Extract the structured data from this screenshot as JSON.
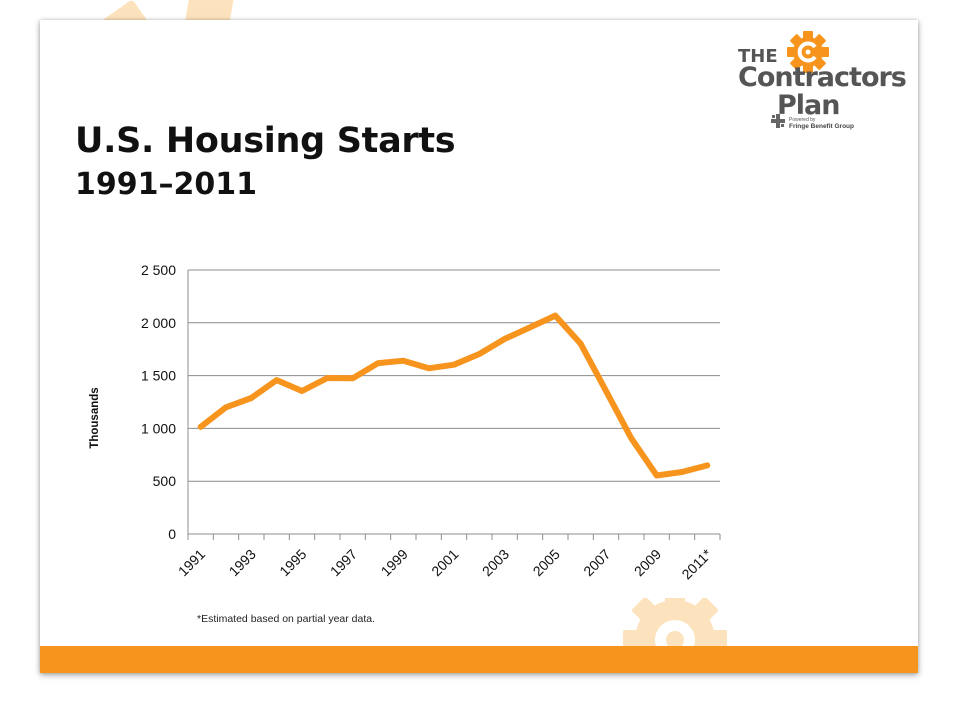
{
  "slide": {
    "title": "U.S. Housing Starts",
    "subtitle": "1991–2011",
    "footnote": "*Estimated based on partial year data."
  },
  "logo": {
    "the": "THE",
    "contractors": "Contractors",
    "plan": "Plan",
    "powered_by": "Powered by",
    "company": "Fringe Benefit Group"
  },
  "colors": {
    "accent": "#f7941d",
    "gear_light": "#fde3bd",
    "text": "#111111",
    "grid": "#999999"
  },
  "chart_data": {
    "type": "line",
    "title": "",
    "xlabel": "",
    "ylabel": "Thousands",
    "ylim": [
      0,
      2500
    ],
    "yticks": [
      0,
      500,
      1000,
      1500,
      2000,
      2500
    ],
    "ytick_labels": [
      "0",
      "500",
      "1 000",
      "1 500",
      "2 000",
      "2 500"
    ],
    "x": [
      "1991",
      "1992",
      "1993",
      "1994",
      "1995",
      "1996",
      "1997",
      "1998",
      "1999",
      "2000",
      "2001",
      "2002",
      "2003",
      "2004",
      "2005",
      "2006",
      "2007",
      "2008",
      "2009",
      "2010",
      "2011*"
    ],
    "xtick_labels": [
      "1991",
      "1993",
      "1995",
      "1997",
      "1999",
      "2001",
      "2003",
      "2005",
      "2007",
      "2009",
      "2011*"
    ],
    "series": [
      {
        "values": [
          1014,
          1200,
          1288,
          1457,
          1354,
          1477,
          1474,
          1617,
          1641,
          1569,
          1603,
          1705,
          1848,
          1956,
          2068,
          1801,
          1355,
          906,
          554,
          587,
          650
        ],
        "color": "#f7941d"
      }
    ],
    "grid": true,
    "legend": "none"
  }
}
